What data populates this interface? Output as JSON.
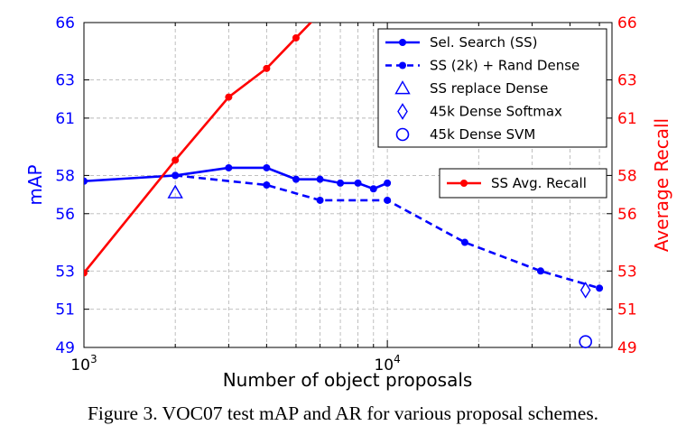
{
  "chart_data": {
    "type": "line",
    "xlabel": "Number of object proposals",
    "ylabel_left": "mAP",
    "ylabel_right": "Average Recall",
    "x_scale": "log",
    "xlim": [
      1000,
      55000
    ],
    "ylim": [
      49,
      66
    ],
    "x_ticks": [
      {
        "value": 1000,
        "base": "10",
        "exp": "3"
      },
      {
        "value": 10000,
        "base": "10",
        "exp": "4"
      }
    ],
    "y_ticks_left": [
      "49",
      "51",
      "53",
      "56",
      "58",
      "61",
      "63",
      "66"
    ],
    "y_ticks_right": [
      "49",
      "51",
      "53",
      "56",
      "58",
      "61",
      "63",
      "66"
    ],
    "grid": true,
    "series": [
      {
        "name": "Sel. Search (SS)",
        "axis": "left",
        "color": "#0000ff",
        "style": "solid",
        "marker": "circle",
        "x": [
          1000,
          2000,
          3000,
          4000,
          5000,
          6000,
          7000,
          8000,
          9000,
          10000
        ],
        "y": [
          57.7,
          58.0,
          58.4,
          58.4,
          57.8,
          57.8,
          57.6,
          57.6,
          57.3,
          57.6
        ]
      },
      {
        "name": "SS (2k) + Rand Dense",
        "axis": "left",
        "color": "#0000ff",
        "style": "dashed",
        "marker": "circle",
        "x": [
          2000,
          4000,
          6000,
          10000,
          18000,
          32000,
          50000
        ],
        "y": [
          58.0,
          57.5,
          56.7,
          56.7,
          54.5,
          53.0,
          52.1
        ]
      },
      {
        "name": "SS replace Dense",
        "axis": "left",
        "color": "#0000ff",
        "marker": "triangle",
        "x": [
          2000
        ],
        "y": [
          57.1
        ]
      },
      {
        "name": "45k Dense Softmax",
        "axis": "left",
        "color": "#0000ff",
        "marker": "diamond",
        "x": [
          45000
        ],
        "y": [
          52.0
        ]
      },
      {
        "name": "45k Dense SVM",
        "axis": "left",
        "color": "#0000ff",
        "marker": "open-circle",
        "x": [
          45000
        ],
        "y": [
          49.3
        ]
      },
      {
        "name": "SS Avg. Recall",
        "axis": "right",
        "color": "#ff0000",
        "style": "solid",
        "marker": "circle",
        "x": [
          1000,
          2000,
          3000,
          4000,
          5000,
          6000
        ],
        "y": [
          52.9,
          58.8,
          62.1,
          63.6,
          65.2,
          66.5
        ]
      }
    ],
    "legend_left_axis": "top-right",
    "legend_right_axis": "right"
  },
  "caption": "Figure 3. VOC07 test mAP and AR for various proposal schemes."
}
